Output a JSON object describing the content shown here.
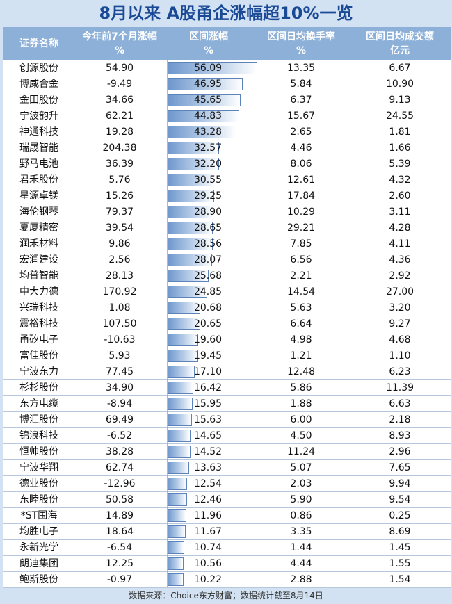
{
  "title": "8月以来 A股甬企涨幅超10%一览",
  "headers": {
    "name": "证券名称",
    "ytd_line1": "今年前7个月涨幅",
    "ytd_line2": "%",
    "range_line1": "区间涨幅",
    "range_line2": "%",
    "turnover_line1": "区间日均换手率",
    "turnover_line2": "%",
    "volume_line1": "区间日均成交额",
    "volume_line2": "亿元"
  },
  "source": "数据来源：Choice东方财富；数据统计截至8月14日",
  "colors": {
    "header_bg": "#8db0d8",
    "title": "#1a4a96",
    "bar": "#6d96cc",
    "page_bg": "#d3e2f2"
  },
  "chart_data": {
    "type": "table",
    "bar_column": "range_pct",
    "bar_max": 56.09,
    "columns": [
      "证券名称",
      "今年前7个月涨幅%",
      "区间涨幅%",
      "区间日均换手率%",
      "区间日均成交额亿元"
    ],
    "rows": [
      {
        "name": "创源股份",
        "ytd": "54.90",
        "range": "56.09",
        "turnover": "13.35",
        "volume": "6.67"
      },
      {
        "name": "博威合金",
        "ytd": "-9.49",
        "range": "46.95",
        "turnover": "5.84",
        "volume": "10.90"
      },
      {
        "name": "金田股份",
        "ytd": "34.66",
        "range": "45.65",
        "turnover": "6.37",
        "volume": "9.13"
      },
      {
        "name": "宁波韵升",
        "ytd": "62.21",
        "range": "44.83",
        "turnover": "15.67",
        "volume": "24.55"
      },
      {
        "name": "神通科技",
        "ytd": "19.28",
        "range": "43.28",
        "turnover": "2.65",
        "volume": "1.81"
      },
      {
        "name": "瑞晟智能",
        "ytd": "204.38",
        "range": "32.57",
        "turnover": "4.46",
        "volume": "1.66"
      },
      {
        "name": "野马电池",
        "ytd": "36.39",
        "range": "32.20",
        "turnover": "8.06",
        "volume": "5.39"
      },
      {
        "name": "君禾股份",
        "ytd": "5.76",
        "range": "30.55",
        "turnover": "12.61",
        "volume": "4.32"
      },
      {
        "name": "星源卓镁",
        "ytd": "15.26",
        "range": "29.25",
        "turnover": "17.84",
        "volume": "2.60"
      },
      {
        "name": "海伦钢琴",
        "ytd": "79.37",
        "range": "28.90",
        "turnover": "10.29",
        "volume": "3.11"
      },
      {
        "name": "夏厦精密",
        "ytd": "39.54",
        "range": "28.65",
        "turnover": "29.21",
        "volume": "4.28"
      },
      {
        "name": "润禾材料",
        "ytd": "9.86",
        "range": "28.56",
        "turnover": "7.85",
        "volume": "4.11"
      },
      {
        "name": "宏润建设",
        "ytd": "2.56",
        "range": "28.07",
        "turnover": "6.56",
        "volume": "4.36"
      },
      {
        "name": "均普智能",
        "ytd": "28.13",
        "range": "25.68",
        "turnover": "2.21",
        "volume": "2.92"
      },
      {
        "name": "中大力德",
        "ytd": "170.92",
        "range": "24.85",
        "turnover": "14.54",
        "volume": "27.00"
      },
      {
        "name": "兴瑞科技",
        "ytd": "1.08",
        "range": "20.68",
        "turnover": "5.63",
        "volume": "3.20"
      },
      {
        "name": "震裕科技",
        "ytd": "107.50",
        "range": "20.65",
        "turnover": "6.64",
        "volume": "9.27"
      },
      {
        "name": "甬矽电子",
        "ytd": "-10.63",
        "range": "19.60",
        "turnover": "4.98",
        "volume": "4.68"
      },
      {
        "name": "富佳股份",
        "ytd": "5.93",
        "range": "19.45",
        "turnover": "1.21",
        "volume": "1.10"
      },
      {
        "name": "宁波东力",
        "ytd": "77.45",
        "range": "17.10",
        "turnover": "12.48",
        "volume": "6.23"
      },
      {
        "name": "杉杉股份",
        "ytd": "34.90",
        "range": "16.42",
        "turnover": "5.86",
        "volume": "11.39"
      },
      {
        "name": "东方电缆",
        "ytd": "-8.94",
        "range": "15.95",
        "turnover": "1.88",
        "volume": "6.63"
      },
      {
        "name": "博汇股份",
        "ytd": "69.49",
        "range": "15.63",
        "turnover": "6.00",
        "volume": "2.18"
      },
      {
        "name": "锦浪科技",
        "ytd": "-6.52",
        "range": "14.65",
        "turnover": "4.50",
        "volume": "8.93"
      },
      {
        "name": "恒帅股份",
        "ytd": "38.28",
        "range": "14.52",
        "turnover": "11.24",
        "volume": "2.96"
      },
      {
        "name": "宁波华翔",
        "ytd": "62.74",
        "range": "13.63",
        "turnover": "5.07",
        "volume": "7.65"
      },
      {
        "name": "德业股份",
        "ytd": "-12.96",
        "range": "12.54",
        "turnover": "2.03",
        "volume": "9.94"
      },
      {
        "name": "东睦股份",
        "ytd": "50.58",
        "range": "12.46",
        "turnover": "5.90",
        "volume": "9.54"
      },
      {
        "name": "*ST围海",
        "ytd": "14.89",
        "range": "11.96",
        "turnover": "0.86",
        "volume": "0.25"
      },
      {
        "name": "均胜电子",
        "ytd": "18.64",
        "range": "11.67",
        "turnover": "3.35",
        "volume": "8.69"
      },
      {
        "name": "永新光学",
        "ytd": "-6.54",
        "range": "10.74",
        "turnover": "1.44",
        "volume": "1.45"
      },
      {
        "name": "朗迪集团",
        "ytd": "12.25",
        "range": "10.56",
        "turnover": "4.44",
        "volume": "1.55"
      },
      {
        "name": "鲍斯股份",
        "ytd": "-0.97",
        "range": "10.22",
        "turnover": "2.88",
        "volume": "1.54"
      }
    ]
  }
}
